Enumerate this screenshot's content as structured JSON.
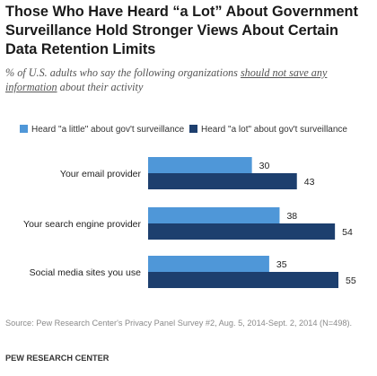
{
  "header": {
    "title": "Those Who Have Heard “a Lot” About Government Surveillance Hold Stronger Views About Certain Data Retention Limits",
    "subtitle_pre": "% of U.S. adults who say the following organizations ",
    "subtitle_underlined": "should not save any information",
    "subtitle_post": " about their activity"
  },
  "footer": {
    "source": "Source: Pew Research Center's Privacy Panel Survey #2, Aug. 5, 2014-Sept. 2, 2014 (N=498).",
    "credit": "PEW RESEARCH CENTER"
  },
  "chart_data": {
    "type": "bar",
    "orientation": "horizontal",
    "categories": [
      "Your email provider",
      "Your search engine provider",
      "Social media sites you use"
    ],
    "series": [
      {
        "name": "Heard \"a little\" about gov't surveillance",
        "values": [
          30,
          38,
          35
        ],
        "color": "#4f97d8"
      },
      {
        "name": "Heard \"a lot\" about gov't surveillance",
        "values": [
          43,
          54,
          55
        ],
        "color": "#1d3f6e"
      }
    ],
    "xlim": [
      0,
      55
    ],
    "legend_position": "top",
    "grid": false
  }
}
